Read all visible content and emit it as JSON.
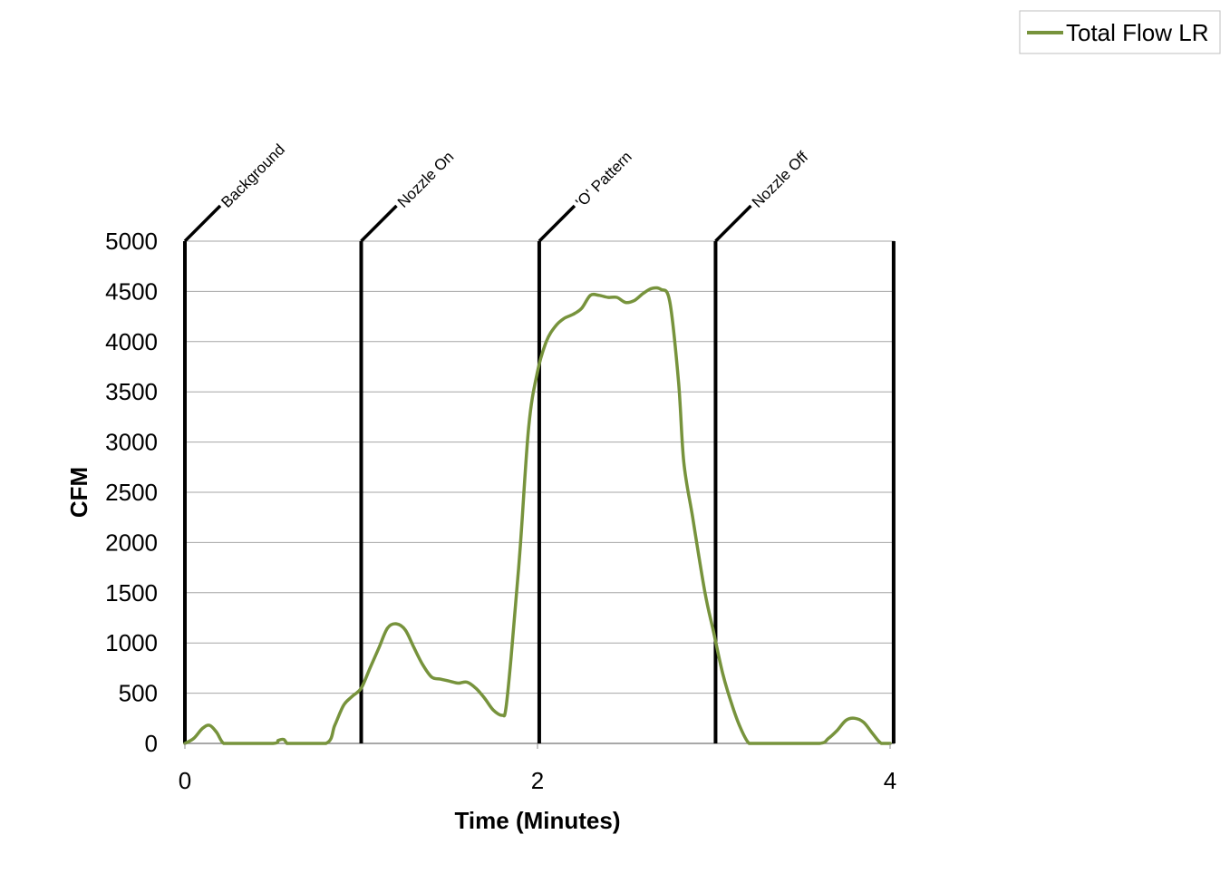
{
  "chart_data": {
    "type": "line",
    "xlabel": "Time (Minutes)",
    "ylabel": "CFM",
    "xlim": [
      0,
      4
    ],
    "ylim": [
      0,
      5000
    ],
    "x_ticks": [
      0,
      2,
      4
    ],
    "y_ticks": [
      0,
      500,
      1000,
      1500,
      2000,
      2500,
      3000,
      3500,
      4000,
      4500,
      5000
    ],
    "grid": "horizontal",
    "legend_position": "top-right",
    "colors": {
      "series": "#77933c",
      "event_line": "#000000",
      "grid": "#a6a6a6"
    },
    "events": [
      {
        "label": "Background",
        "x": 0
      },
      {
        "label": "Nozzle On",
        "x": 1
      },
      {
        "label": "'O' Pattern",
        "x": 2.01
      },
      {
        "label": "Nozzle Off",
        "x": 3.01
      },
      {
        "label": "",
        "x": 4.02
      }
    ],
    "series": [
      {
        "name": "Total Flow LR",
        "x": [
          0,
          0.05,
          0.1,
          0.14,
          0.18,
          0.22,
          0.28,
          0.5,
          0.53,
          0.56,
          0.58,
          0.6,
          0.8,
          0.85,
          0.9,
          0.95,
          1.0,
          1.05,
          1.1,
          1.15,
          1.2,
          1.25,
          1.3,
          1.35,
          1.4,
          1.45,
          1.5,
          1.55,
          1.6,
          1.65,
          1.7,
          1.75,
          1.8,
          1.82,
          1.85,
          1.9,
          1.95,
          2.0,
          2.05,
          2.1,
          2.15,
          2.2,
          2.25,
          2.3,
          2.35,
          2.4,
          2.45,
          2.5,
          2.55,
          2.6,
          2.65,
          2.7,
          2.75,
          2.8,
          2.83,
          2.88,
          2.95,
          3.0,
          3.05,
          3.1,
          3.15,
          3.2,
          3.25,
          3.3,
          3.35,
          3.4,
          3.6,
          3.65,
          3.7,
          3.75,
          3.8,
          3.85,
          3.9,
          3.95,
          4.0
        ],
        "values": [
          0,
          50,
          150,
          180,
          110,
          0,
          0,
          0,
          30,
          40,
          0,
          0,
          0,
          180,
          380,
          470,
          550,
          750,
          950,
          1150,
          1190,
          1130,
          950,
          780,
          660,
          640,
          620,
          600,
          610,
          550,
          450,
          330,
          280,
          340,
          850,
          1900,
          3150,
          3700,
          4000,
          4150,
          4230,
          4270,
          4330,
          4460,
          4460,
          4440,
          4440,
          4390,
          4410,
          4480,
          4530,
          4520,
          4400,
          3600,
          2800,
          2250,
          1500,
          1100,
          700,
          400,
          160,
          0,
          0,
          0,
          0,
          0,
          0,
          50,
          130,
          230,
          250,
          210,
          100,
          0,
          0
        ]
      }
    ]
  }
}
